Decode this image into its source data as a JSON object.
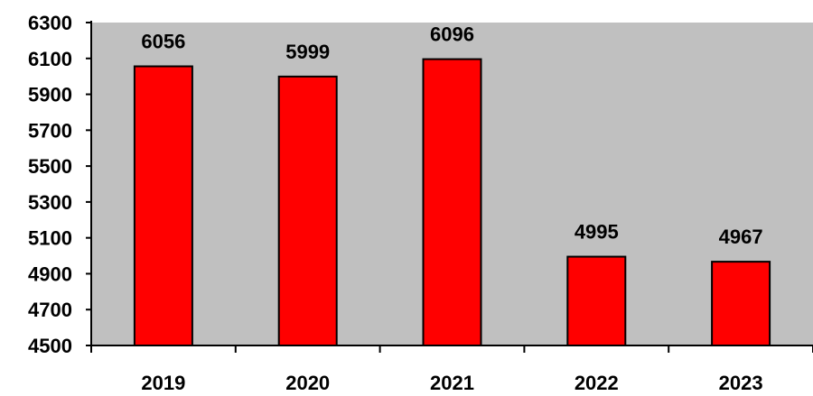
{
  "chart_data": {
    "type": "bar",
    "categories": [
      "2019",
      "2020",
      "2021",
      "2022",
      "2023"
    ],
    "values": [
      6056,
      5999,
      6096,
      4995,
      4967
    ],
    "data_labels": [
      "6056",
      "5999",
      "6096",
      "4995",
      "4967"
    ],
    "title": "",
    "xlabel": "",
    "ylabel": "",
    "ylim": [
      4500,
      6300
    ],
    "yticks": [
      "4500",
      "4700",
      "4900",
      "5100",
      "5300",
      "5500",
      "5700",
      "5900",
      "6100",
      "6300"
    ],
    "grid": false,
    "colors": {
      "plot_background": "#c0c0c0",
      "bar_fill": "#ff0000",
      "bar_stroke": "#000000",
      "axis": "#000000"
    }
  }
}
